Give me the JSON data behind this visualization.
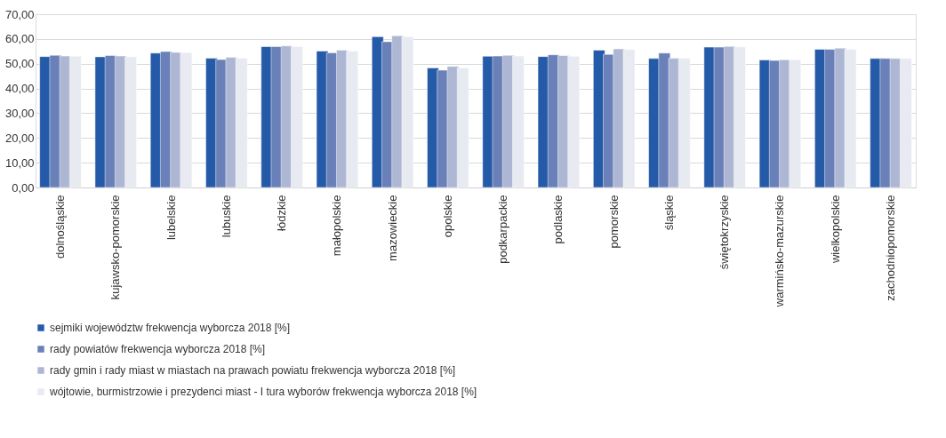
{
  "chart_data": {
    "type": "bar",
    "categories": [
      "dolnośląskie",
      "kujawsko-pomorskie",
      "lubelskie",
      "lubuskie",
      "łódzkie",
      "małopolskie",
      "mazowieckie",
      "opolskie",
      "podkarpackie",
      "podlaskie",
      "pomorskie",
      "śląskie",
      "świętokrzyskie",
      "warmińsko-mazurskie",
      "wielkopolskie",
      "zachodniopomorskie"
    ],
    "series": [
      {
        "name": "sejmiki województw frekwencja wyborcza 2018 [%]",
        "color": "#255aa8",
        "values": [
          52.9,
          52.8,
          54.3,
          52.2,
          56.9,
          55.1,
          60.9,
          48.3,
          53.0,
          52.9,
          55.5,
          52.1,
          56.7,
          51.5,
          55.8,
          52.1
        ]
      },
      {
        "name": "rady powiatów frekwencja wyborcza 2018 [%]",
        "color": "#6a80b8",
        "values": [
          53.4,
          53.3,
          54.9,
          51.7,
          56.9,
          54.4,
          58.9,
          47.4,
          53.1,
          53.6,
          53.8,
          54.3,
          56.7,
          51.3,
          55.8,
          52.1
        ]
      },
      {
        "name": "rady gmin i rady miast w miastach na prawach powiatu frekwencja wyborcza 2018 [%]",
        "color": "#adb7d3",
        "values": [
          53.1,
          53.1,
          54.6,
          52.6,
          57.2,
          55.5,
          61.3,
          48.9,
          53.4,
          53.3,
          56.0,
          52.2,
          57.0,
          51.6,
          56.3,
          52.1
        ]
      },
      {
        "name": "wójtowie, burmistrzowie i prezydenci miast - I tura wyborów frekwencja wyborcza 2018 [%]",
        "color": "#e8eaf1",
        "values": [
          53.0,
          52.8,
          54.5,
          52.2,
          56.9,
          55.1,
          60.9,
          48.3,
          53.1,
          53.0,
          55.7,
          52.2,
          56.8,
          51.6,
          55.8,
          52.1
        ]
      }
    ],
    "ylim": [
      0,
      70
    ],
    "yticks": [
      {
        "value": 0,
        "label": "0,00"
      },
      {
        "value": 10,
        "label": "10,00"
      },
      {
        "value": 20,
        "label": "20,00"
      },
      {
        "value": 30,
        "label": "30,00"
      },
      {
        "value": 40,
        "label": "40,00"
      },
      {
        "value": 50,
        "label": "50,00"
      },
      {
        "value": 60,
        "label": "60,00"
      },
      {
        "value": 70,
        "label": "70,00"
      }
    ],
    "grid": "y",
    "legend": "bottom"
  }
}
